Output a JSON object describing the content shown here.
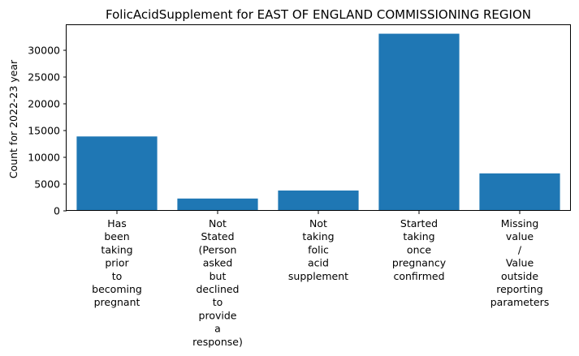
{
  "chart_data": {
    "type": "bar",
    "title": "FolicAcidSupplement for EAST OF ENGLAND COMMISSIONING REGION",
    "xlabel": "",
    "ylabel": "Count for 2022-23 year",
    "ylim": [
      0,
      34700
    ],
    "yticks": [
      0,
      5000,
      10000,
      15000,
      20000,
      25000,
      30000
    ],
    "grid": false,
    "bar_color": "#1f77b4",
    "categories": [
      [
        "Has",
        "been",
        "taking",
        "prior",
        "to",
        "becoming",
        "pregnant"
      ],
      [
        "Not",
        "Stated",
        "(Person",
        "asked",
        "but",
        "declined",
        "to",
        "provide",
        "a",
        "response)"
      ],
      [
        "Not",
        "taking",
        "folic",
        "acid",
        "supplement"
      ],
      [
        "Started",
        "taking",
        "once",
        "pregnancy",
        "confirmed"
      ],
      [
        "Missing",
        "value",
        "/",
        "Value",
        "outside",
        "reporting",
        "parameters"
      ]
    ],
    "values": [
      13900,
      2300,
      3800,
      33100,
      7000
    ]
  }
}
